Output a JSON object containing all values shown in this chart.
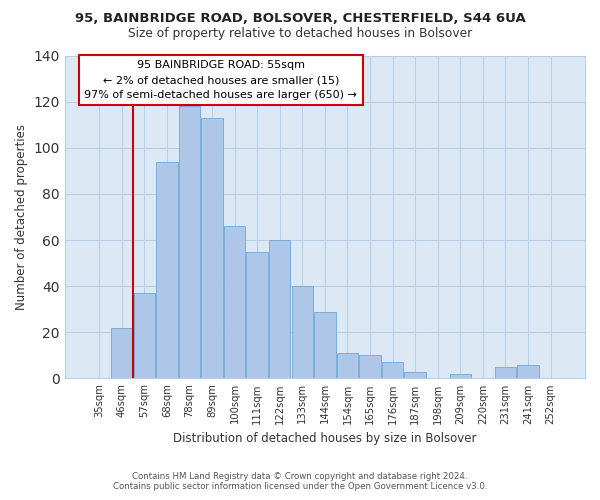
{
  "title1": "95, BAINBRIDGE ROAD, BOLSOVER, CHESTERFIELD, S44 6UA",
  "title2": "Size of property relative to detached houses in Bolsover",
  "xlabel": "Distribution of detached houses by size in Bolsover",
  "ylabel": "Number of detached properties",
  "bar_labels": [
    "35sqm",
    "46sqm",
    "57sqm",
    "68sqm",
    "78sqm",
    "89sqm",
    "100sqm",
    "111sqm",
    "122sqm",
    "133sqm",
    "144sqm",
    "154sqm",
    "165sqm",
    "176sqm",
    "187sqm",
    "198sqm",
    "209sqm",
    "220sqm",
    "231sqm",
    "241sqm",
    "252sqm"
  ],
  "bar_values": [
    0,
    22,
    37,
    94,
    118,
    113,
    66,
    55,
    60,
    40,
    29,
    11,
    10,
    7,
    3,
    0,
    2,
    0,
    5,
    6,
    0
  ],
  "bar_color": "#aec6e8",
  "bar_edge_color": "#6fa8d6",
  "vline_position": 2.5,
  "vline_color": "#cc0000",
  "ylim": [
    0,
    140
  ],
  "yticks": [
    0,
    20,
    40,
    60,
    80,
    100,
    120,
    140
  ],
  "annotation_text_line1": "95 BAINBRIDGE ROAD: 55sqm",
  "annotation_text_line2": "← 2% of detached houses are smaller (15)",
  "annotation_text_line3": "97% of semi-detached houses are larger (650) →",
  "annotation_box_color": "#ffffff",
  "annotation_box_edge": "#cc0000",
  "footer1": "Contains HM Land Registry data © Crown copyright and database right 2024.",
  "footer2": "Contains public sector information licensed under the Open Government Licence v3.0.",
  "bg_color": "#dce9f5",
  "grid_color": "#b8cfe8"
}
